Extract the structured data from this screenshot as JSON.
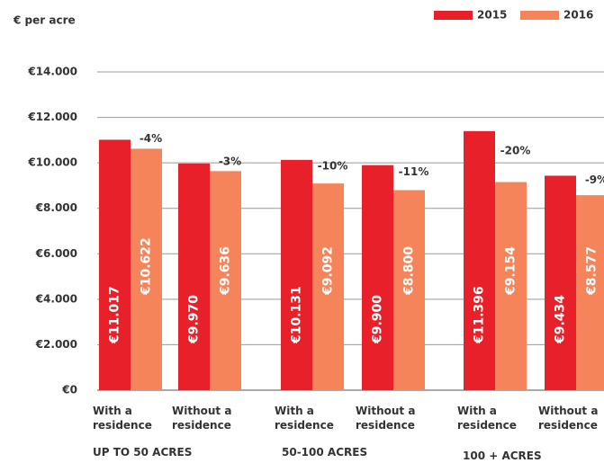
{
  "chart_data": {
    "type": "bar",
    "y_label": "€ per acre",
    "categories": [
      "With a residence",
      "Without a residence",
      "With a residence",
      "Without a residence",
      "With a residence",
      "Without a residence"
    ],
    "groups": [
      "UP TO 50 ACRES",
      "50-100 ACRES",
      "100 + ACRES"
    ],
    "series": [
      {
        "name": "2015",
        "color": "#e8202a",
        "values": [
          11017,
          9970,
          10131,
          9900,
          11396,
          9434
        ],
        "value_labels": [
          "€11.017",
          "€9.970",
          "€10.131",
          "€9.900",
          "€11.396",
          "€9.434"
        ]
      },
      {
        "name": "2016",
        "color": "#f5845a",
        "values": [
          10622,
          9636,
          9092,
          8800,
          9154,
          8577
        ],
        "value_labels": [
          "€10.622",
          "€9.636",
          "€9.092",
          "€8.800",
          "€9.154",
          "€8.577"
        ]
      }
    ],
    "annotations": [
      "-4%",
      "-3%",
      "-10%",
      "-11%",
      "-20%",
      "-9%"
    ],
    "ylim": [
      0,
      14000
    ],
    "yticks": [
      {
        "value": 0,
        "label": "€0"
      },
      {
        "value": 2000,
        "label": "€2.000"
      },
      {
        "value": 4000,
        "label": "€4.000"
      },
      {
        "value": 6000,
        "label": "€6.000"
      },
      {
        "value": 8000,
        "label": "€8.000"
      },
      {
        "value": 10000,
        "label": "€10.000"
      },
      {
        "value": 12000,
        "label": "€12.000"
      },
      {
        "value": 14000,
        "label": "€14.000"
      }
    ],
    "grid": true
  }
}
